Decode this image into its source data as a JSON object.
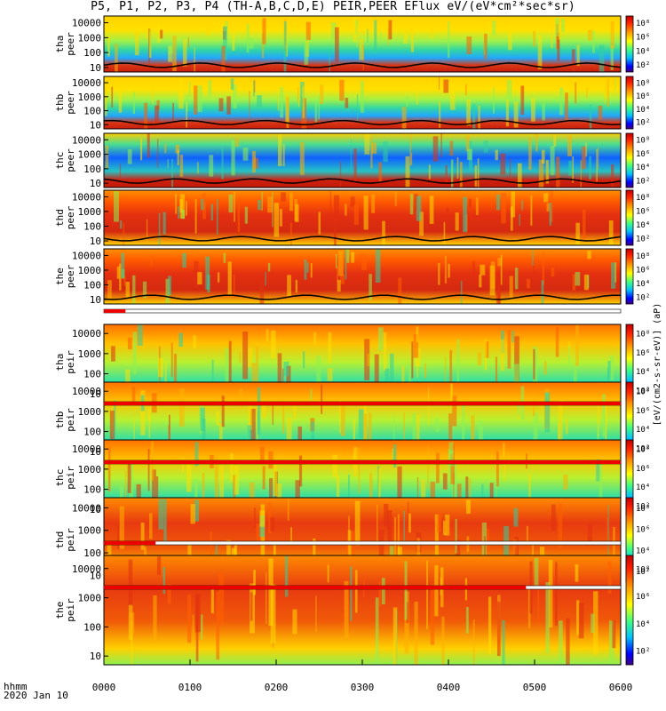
{
  "title": "P5, P1, P2, P3, P4 (TH-A,B,C,D,E) PEIR,PEER EFlux eV/(eV*cm²*sec*sr)",
  "footer": {
    "time_label": "hhmm",
    "date": "2020 Jan 10"
  },
  "chart_data": {
    "type": "heatmap",
    "x_ticks": [
      "0000",
      "0100",
      "0200",
      "0300",
      "0400",
      "0500",
      "0600"
    ],
    "x_range_hours": [
      0,
      6
    ],
    "y_scale": "log",
    "y_tick_labels": [
      "10",
      "100",
      "1000",
      "10000"
    ],
    "colorbar_ticks_peer": [
      "10²",
      "10⁴",
      "10⁶",
      "10⁸"
    ],
    "colorbar_ticks_peir": [
      "10²",
      "10⁴",
      "10⁶",
      "10⁸"
    ],
    "colorbar_label": "[eV/(cm2-s-sr-eV)] (aP)",
    "colorbar_label_wide": "[eV/(cm2-s-sr-eV)] (aP)",
    "panels": [
      {
        "probe": "tha",
        "product": "peer"
      },
      {
        "probe": "thb",
        "product": "peer"
      },
      {
        "probe": "thc",
        "product": "peer"
      },
      {
        "probe": "thd",
        "product": "peer"
      },
      {
        "probe": "the",
        "product": "peer"
      },
      {
        "probe": "tha",
        "product": "peir"
      },
      {
        "probe": "thb",
        "product": "peir"
      },
      {
        "probe": "thc",
        "product": "peir"
      },
      {
        "probe": "thd",
        "product": "peir"
      },
      {
        "probe": "the",
        "product": "peir"
      }
    ],
    "mode_bars": [
      {
        "after_panel": 5,
        "red_until_hours": 0.25
      },
      {
        "after_panel": 6,
        "red_until_hours": 6.0
      },
      {
        "after_panel": 7,
        "red_until_hours": 6.0
      },
      {
        "after_panel": 8,
        "red_until_hours": 0.6
      },
      {
        "after_panel": 9,
        "red_until_hours": 4.9
      }
    ]
  },
  "colors": {
    "high": "#c81e0a",
    "mid": "#ffff00",
    "low": "#0000ff",
    "bar_red": "#ee0000"
  }
}
